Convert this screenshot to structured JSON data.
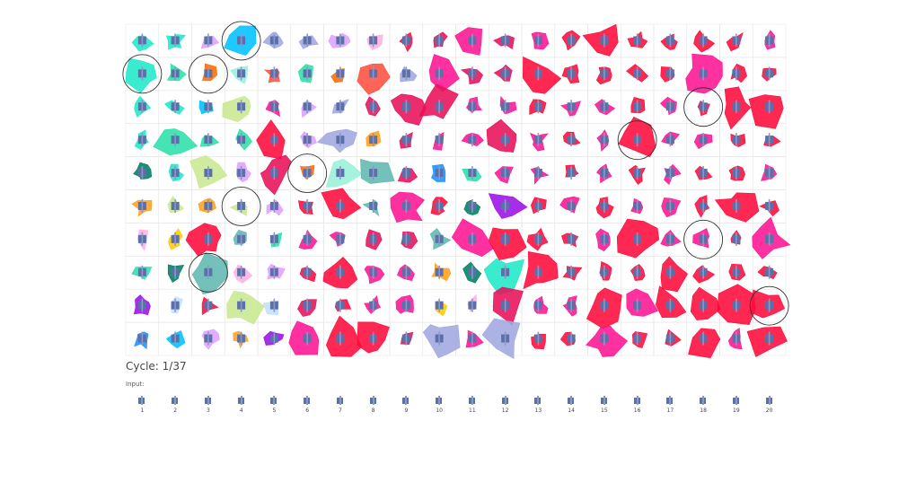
{
  "cycle": {
    "label": "Cycle: 1/37"
  },
  "input": {
    "label": "Input:",
    "items": [
      {
        "number": "1"
      },
      {
        "number": "2"
      },
      {
        "number": "3"
      },
      {
        "number": "4"
      },
      {
        "number": "5"
      },
      {
        "number": "6"
      },
      {
        "number": "7"
      },
      {
        "number": "8"
      },
      {
        "number": "9"
      },
      {
        "number": "10"
      },
      {
        "number": "11"
      },
      {
        "number": "12"
      },
      {
        "number": "13"
      },
      {
        "number": "14"
      },
      {
        "number": "15"
      },
      {
        "number": "16"
      },
      {
        "number": "17"
      },
      {
        "number": "18"
      },
      {
        "number": "19"
      },
      {
        "number": "20"
      }
    ]
  },
  "grid": {
    "columns": 20,
    "rows": 10,
    "highlighted_cells": [
      {
        "row": 0,
        "col": 3
      },
      {
        "row": 1,
        "col": 0
      },
      {
        "row": 1,
        "col": 2
      },
      {
        "row": 2,
        "col": 17
      },
      {
        "row": 3,
        "col": 15
      },
      {
        "row": 4,
        "col": 5
      },
      {
        "row": 5,
        "col": 3
      },
      {
        "row": 6,
        "col": 17
      },
      {
        "row": 7,
        "col": 2
      },
      {
        "row": 8,
        "col": 19
      }
    ]
  },
  "colors": {
    "icon_body": "#5b6fa8",
    "icon_stem": "#8a98c8",
    "cell_border": "#e6e6e6",
    "highlight_ring": "#333333",
    "palette": [
      "#1ee8c8",
      "#2de0a8",
      "#ff1493",
      "#e8105a",
      "#ff0a3a",
      "#9b10e8",
      "#ffcc00",
      "#ff6a00",
      "#1e90ff",
      "#00c2ff",
      "#008060",
      "#98f0d8",
      "#c0e0ff",
      "#e0a0ff",
      "#ffb0e0",
      "#c8e890",
      "#a0a8e0",
      "#60b8b0",
      "#ffa020",
      "#ff5040"
    ]
  }
}
